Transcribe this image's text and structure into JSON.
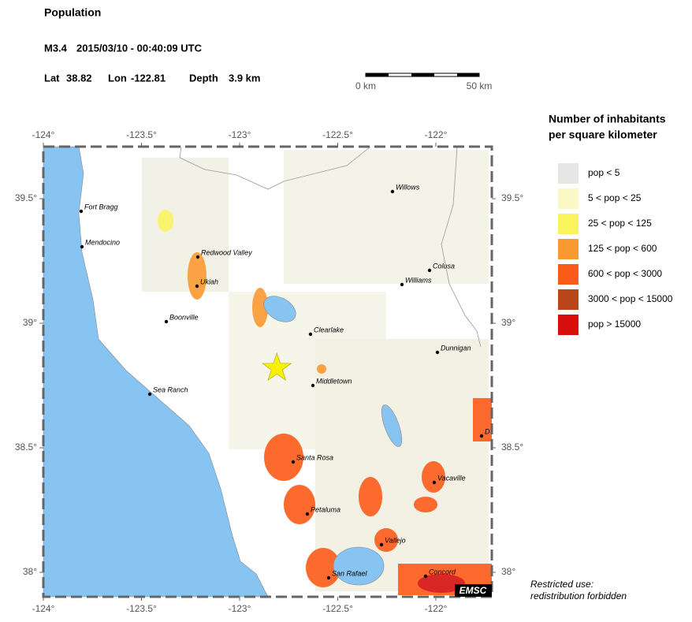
{
  "header": {
    "title": "Population",
    "magnitude": "M3.4",
    "time": "2015/03/10 - 00:40:09 UTC",
    "lat_label": "Lat",
    "lat": 38.82,
    "lon_label": "Lon",
    "lon": -122.81,
    "depth_label": "Depth",
    "depth": "3.9 km"
  },
  "scale_bar": {
    "start": "0 km",
    "end": "50 km"
  },
  "map": {
    "lon_ticks": [
      {
        "value": -124,
        "label": "-124°"
      },
      {
        "value": -123.5,
        "label": "-123.5°"
      },
      {
        "value": -123,
        "label": "-123°"
      },
      {
        "value": -122.5,
        "label": "-122.5°"
      },
      {
        "value": -122,
        "label": "-122°"
      }
    ],
    "lat_ticks": [
      {
        "value": 39.5,
        "label": "39.5°"
      },
      {
        "value": 39,
        "label": "39°"
      },
      {
        "value": 38.5,
        "label": "38.5°"
      },
      {
        "value": 38,
        "label": "38°"
      }
    ],
    "cities": [
      "Fort Bragg",
      "Mendocino",
      "Redwood Valley",
      "Ukiah",
      "Boonville",
      "Sea Ranch",
      "Willows",
      "Colusa",
      "Williams",
      "Clearlake",
      "Dunnigan",
      "Middletown",
      "Santa Rosa",
      "Vacaville",
      "Petaluma",
      "Vallejo",
      "San Rafael",
      "Concord",
      "D"
    ],
    "logo": "EMSC"
  },
  "legend": {
    "title": [
      "Number of inhabitants",
      "per square kilometer"
    ],
    "items": [
      {
        "label": "pop < 5",
        "color": "#e6e6e6"
      },
      {
        "label": "5 < pop < 25",
        "color": "#fbf7c6"
      },
      {
        "label": "25 < pop < 125",
        "color": "#f9f35e"
      },
      {
        "label": "125 < pop < 600",
        "color": "#fb9a30"
      },
      {
        "label": "600 < pop < 3000",
        "color": "#fc5a18"
      },
      {
        "label": "3000 < pop < 15000",
        "color": "#b8461a"
      },
      {
        "label": "pop > 15000",
        "color": "#d80f0f"
      }
    ]
  },
  "note": [
    "Restricted use:",
    "redistribution forbidden"
  ]
}
